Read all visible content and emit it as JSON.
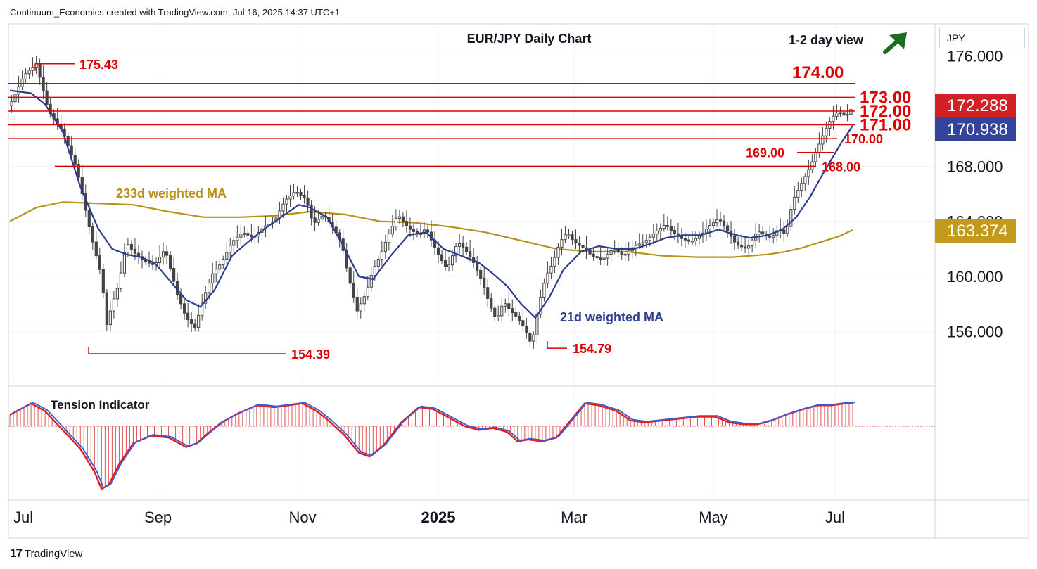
{
  "header": {
    "attribution": "Continuum_Economics created with TradingView.com, Jul 16, 2025 14:37 UTC+1"
  },
  "footer": {
    "logo_mark": "17",
    "logo_text": "TradingView"
  },
  "currency": "JPY",
  "colors": {
    "level_line": "#e00000",
    "level_text": "#e00000",
    "ma21": "#2a3d8f",
    "ma233": "#b8901a",
    "candle": "#444444",
    "tension_bars": "#e05050",
    "tension_line_blue": "#3a5ad6",
    "tension_line_red": "#e02020",
    "arrow": "#1e6b22",
    "badge_price": "#d32027",
    "badge_ma21": "#34449a",
    "badge_ma233": "#c39a1c"
  },
  "chart_data": {
    "type": "candlestick",
    "title": "EUR/JPY Daily Chart",
    "view_note": "1-2 day view",
    "view_arrow": "up-right",
    "y_axis": {
      "range": [
        152.5,
        177.0
      ],
      "visible_tick_labels": [
        "176.000",
        "168.000",
        "164.000",
        "160.000",
        "156.000"
      ]
    },
    "x_axis_labels": [
      "Jul",
      "Sep",
      "Nov",
      "2025",
      "Mar",
      "May",
      "Jul"
    ],
    "horizontal_levels": [
      {
        "label": "174.00",
        "value": 174.0
      },
      {
        "label": "173.00",
        "value": 173.0
      },
      {
        "label": "172.00",
        "value": 172.0
      },
      {
        "label": "171.00",
        "value": 171.0
      },
      {
        "label": "170.00",
        "value": 170.0
      },
      {
        "label": "169.00",
        "value": 169.0
      },
      {
        "label": "168.00",
        "value": 168.0
      }
    ],
    "swing_labels": [
      {
        "label": "175.43",
        "value": 175.43
      },
      {
        "label": "154.39",
        "value": 154.39
      },
      {
        "label": "154.79",
        "value": 154.79
      }
    ],
    "price_badges": [
      {
        "label": "172.288",
        "value": 172.288,
        "kind": "last-price"
      },
      {
        "label": "170.938",
        "value": 170.938,
        "kind": "21d-ma"
      },
      {
        "label": "163.374",
        "value": 163.374,
        "kind": "233d-ma"
      }
    ],
    "series": [
      {
        "name": "21d weighted MA"
      },
      {
        "name": "233d weighted MA"
      }
    ],
    "close_path": [
      [
        0,
        172.4
      ],
      [
        8,
        174.6
      ],
      [
        15,
        175.43
      ],
      [
        22,
        172.0
      ],
      [
        30,
        170.5
      ],
      [
        38,
        167.8
      ],
      [
        46,
        163.0
      ],
      [
        52,
        160.0
      ],
      [
        55,
        156.5
      ],
      [
        58,
        158.0
      ],
      [
        62,
        159.5
      ],
      [
        66,
        162.5
      ],
      [
        70,
        161.8
      ],
      [
        75,
        161.2
      ],
      [
        82,
        160.8
      ],
      [
        88,
        162.0
      ],
      [
        95,
        158.7
      ],
      [
        100,
        157.0
      ],
      [
        105,
        156.3
      ],
      [
        110,
        158.5
      ],
      [
        115,
        160.2
      ],
      [
        120,
        161.0
      ],
      [
        126,
        162.5
      ],
      [
        132,
        163.2
      ],
      [
        138,
        162.8
      ],
      [
        144,
        163.6
      ],
      [
        150,
        164.0
      ],
      [
        156,
        165.5
      ],
      [
        162,
        166.2
      ],
      [
        168,
        165.6
      ],
      [
        172,
        163.8
      ],
      [
        178,
        164.5
      ],
      [
        184,
        163.4
      ],
      [
        188,
        162.5
      ],
      [
        192,
        160.0
      ],
      [
        197,
        157.5
      ],
      [
        202,
        158.8
      ],
      [
        206,
        160.5
      ],
      [
        210,
        161.5
      ],
      [
        214,
        162.8
      ],
      [
        220,
        164.5
      ],
      [
        226,
        163.5
      ],
      [
        232,
        163.0
      ],
      [
        236,
        163.5
      ],
      [
        242,
        161.8
      ],
      [
        248,
        160.5
      ],
      [
        254,
        162.5
      ],
      [
        258,
        162.0
      ],
      [
        263,
        161.0
      ],
      [
        268,
        159.6
      ],
      [
        272,
        158.0
      ],
      [
        276,
        156.8
      ],
      [
        280,
        158.2
      ],
      [
        284,
        157.5
      ],
      [
        288,
        157.0
      ],
      [
        292,
        156.2
      ],
      [
        296,
        155.0
      ],
      [
        300,
        158.0
      ],
      [
        304,
        160.0
      ],
      [
        308,
        161.0
      ],
      [
        312,
        162.5
      ],
      [
        316,
        163.2
      ],
      [
        320,
        162.5
      ],
      [
        326,
        162.0
      ],
      [
        330,
        161.5
      ],
      [
        336,
        161.2
      ],
      [
        342,
        162.0
      ],
      [
        348,
        161.5
      ],
      [
        354,
        162.2
      ],
      [
        360,
        162.5
      ],
      [
        366,
        163.2
      ],
      [
        372,
        163.8
      ],
      [
        376,
        163.2
      ],
      [
        380,
        162.8
      ],
      [
        386,
        162.5
      ],
      [
        392,
        163.0
      ],
      [
        396,
        163.6
      ],
      [
        402,
        164.2
      ],
      [
        406,
        163.5
      ],
      [
        412,
        162.3
      ],
      [
        418,
        162.0
      ],
      [
        424,
        163.3
      ],
      [
        428,
        163.0
      ],
      [
        432,
        162.8
      ],
      [
        436,
        163.5
      ],
      [
        440,
        163.0
      ],
      [
        444,
        165.5
      ],
      [
        448,
        166.5
      ],
      [
        454,
        168.0
      ],
      [
        458,
        169.3
      ],
      [
        462,
        170.5
      ],
      [
        466,
        171.5
      ],
      [
        470,
        172.0
      ],
      [
        474,
        171.6
      ],
      [
        478,
        172.288
      ]
    ],
    "ma21_path": [
      [
        0,
        173.5
      ],
      [
        12,
        173.3
      ],
      [
        20,
        172.5
      ],
      [
        30,
        170.5
      ],
      [
        40,
        166.5
      ],
      [
        50,
        163.5
      ],
      [
        58,
        162.0
      ],
      [
        66,
        161.6
      ],
      [
        74,
        161.4
      ],
      [
        82,
        161.0
      ],
      [
        90,
        159.8
      ],
      [
        100,
        158.3
      ],
      [
        108,
        157.8
      ],
      [
        116,
        159.0
      ],
      [
        126,
        161.5
      ],
      [
        136,
        162.6
      ],
      [
        146,
        163.6
      ],
      [
        156,
        164.5
      ],
      [
        164,
        165.2
      ],
      [
        170,
        165.0
      ],
      [
        180,
        164.3
      ],
      [
        190,
        162.0
      ],
      [
        198,
        160.0
      ],
      [
        206,
        159.8
      ],
      [
        216,
        161.5
      ],
      [
        226,
        163.0
      ],
      [
        236,
        163.2
      ],
      [
        246,
        162.0
      ],
      [
        256,
        161.5
      ],
      [
        266,
        161.0
      ],
      [
        274,
        160.2
      ],
      [
        282,
        159.3
      ],
      [
        290,
        158.0
      ],
      [
        298,
        157.0
      ],
      [
        306,
        158.5
      ],
      [
        314,
        160.5
      ],
      [
        324,
        161.8
      ],
      [
        334,
        162.2
      ],
      [
        344,
        162.0
      ],
      [
        354,
        162.0
      ],
      [
        364,
        162.4
      ],
      [
        372,
        162.8
      ],
      [
        382,
        163.0
      ],
      [
        392,
        163.0
      ],
      [
        402,
        163.4
      ],
      [
        412,
        163.0
      ],
      [
        420,
        162.8
      ],
      [
        430,
        163.0
      ],
      [
        438,
        163.4
      ],
      [
        446,
        164.3
      ],
      [
        454,
        165.8
      ],
      [
        460,
        167.2
      ],
      [
        466,
        168.5
      ],
      [
        472,
        169.8
      ],
      [
        478,
        170.938
      ]
    ],
    "ma233_path": [
      [
        0,
        164.0
      ],
      [
        15,
        165.0
      ],
      [
        30,
        165.4
      ],
      [
        50,
        165.3
      ],
      [
        70,
        165.2
      ],
      [
        90,
        164.7
      ],
      [
        110,
        164.3
      ],
      [
        130,
        164.3
      ],
      [
        150,
        164.4
      ],
      [
        170,
        164.7
      ],
      [
        190,
        164.5
      ],
      [
        210,
        164.0
      ],
      [
        230,
        163.9
      ],
      [
        250,
        163.6
      ],
      [
        270,
        163.2
      ],
      [
        290,
        162.6
      ],
      [
        310,
        162.0
      ],
      [
        330,
        161.8
      ],
      [
        350,
        161.8
      ],
      [
        370,
        161.5
      ],
      [
        390,
        161.4
      ],
      [
        410,
        161.4
      ],
      [
        430,
        161.6
      ],
      [
        440,
        161.8
      ],
      [
        450,
        162.1
      ],
      [
        460,
        162.5
      ],
      [
        470,
        162.9
      ],
      [
        478,
        163.374
      ]
    ],
    "tension_indicator": {
      "title": "Tension Indicator",
      "baseline": 0,
      "path": [
        [
          0,
          0.6
        ],
        [
          12,
          1.2
        ],
        [
          20,
          0.8
        ],
        [
          30,
          -0.2
        ],
        [
          40,
          -1.2
        ],
        [
          48,
          -2.4
        ],
        [
          52,
          -3.3
        ],
        [
          56,
          -3.1
        ],
        [
          62,
          -2.0
        ],
        [
          70,
          -0.9
        ],
        [
          80,
          -0.5
        ],
        [
          90,
          -0.6
        ],
        [
          100,
          -1.1
        ],
        [
          106,
          -0.9
        ],
        [
          112,
          -0.4
        ],
        [
          120,
          0.2
        ],
        [
          130,
          0.7
        ],
        [
          140,
          1.1
        ],
        [
          150,
          1.0
        ],
        [
          158,
          1.1
        ],
        [
          166,
          1.2
        ],
        [
          174,
          0.8
        ],
        [
          182,
          0.2
        ],
        [
          190,
          -0.5
        ],
        [
          198,
          -1.4
        ],
        [
          204,
          -1.6
        ],
        [
          212,
          -1.0
        ],
        [
          222,
          0.2
        ],
        [
          232,
          1.0
        ],
        [
          240,
          0.9
        ],
        [
          250,
          0.4
        ],
        [
          258,
          0.0
        ],
        [
          266,
          -0.2
        ],
        [
          274,
          -0.1
        ],
        [
          282,
          -0.3
        ],
        [
          288,
          -0.8
        ],
        [
          294,
          -0.7
        ],
        [
          302,
          -0.8
        ],
        [
          310,
          -0.6
        ],
        [
          318,
          0.3
        ],
        [
          326,
          1.2
        ],
        [
          334,
          1.1
        ],
        [
          344,
          0.8
        ],
        [
          352,
          0.3
        ],
        [
          360,
          0.2
        ],
        [
          370,
          0.3
        ],
        [
          380,
          0.4
        ],
        [
          390,
          0.5
        ],
        [
          400,
          0.5
        ],
        [
          408,
          0.2
        ],
        [
          416,
          0.1
        ],
        [
          424,
          0.1
        ],
        [
          432,
          0.3
        ],
        [
          440,
          0.6
        ],
        [
          450,
          0.9
        ],
        [
          458,
          1.1
        ],
        [
          466,
          1.1
        ],
        [
          474,
          1.2
        ],
        [
          478,
          1.2
        ]
      ]
    },
    "annotations": [
      "21d weighted MA",
      "233d weighted MA"
    ]
  }
}
